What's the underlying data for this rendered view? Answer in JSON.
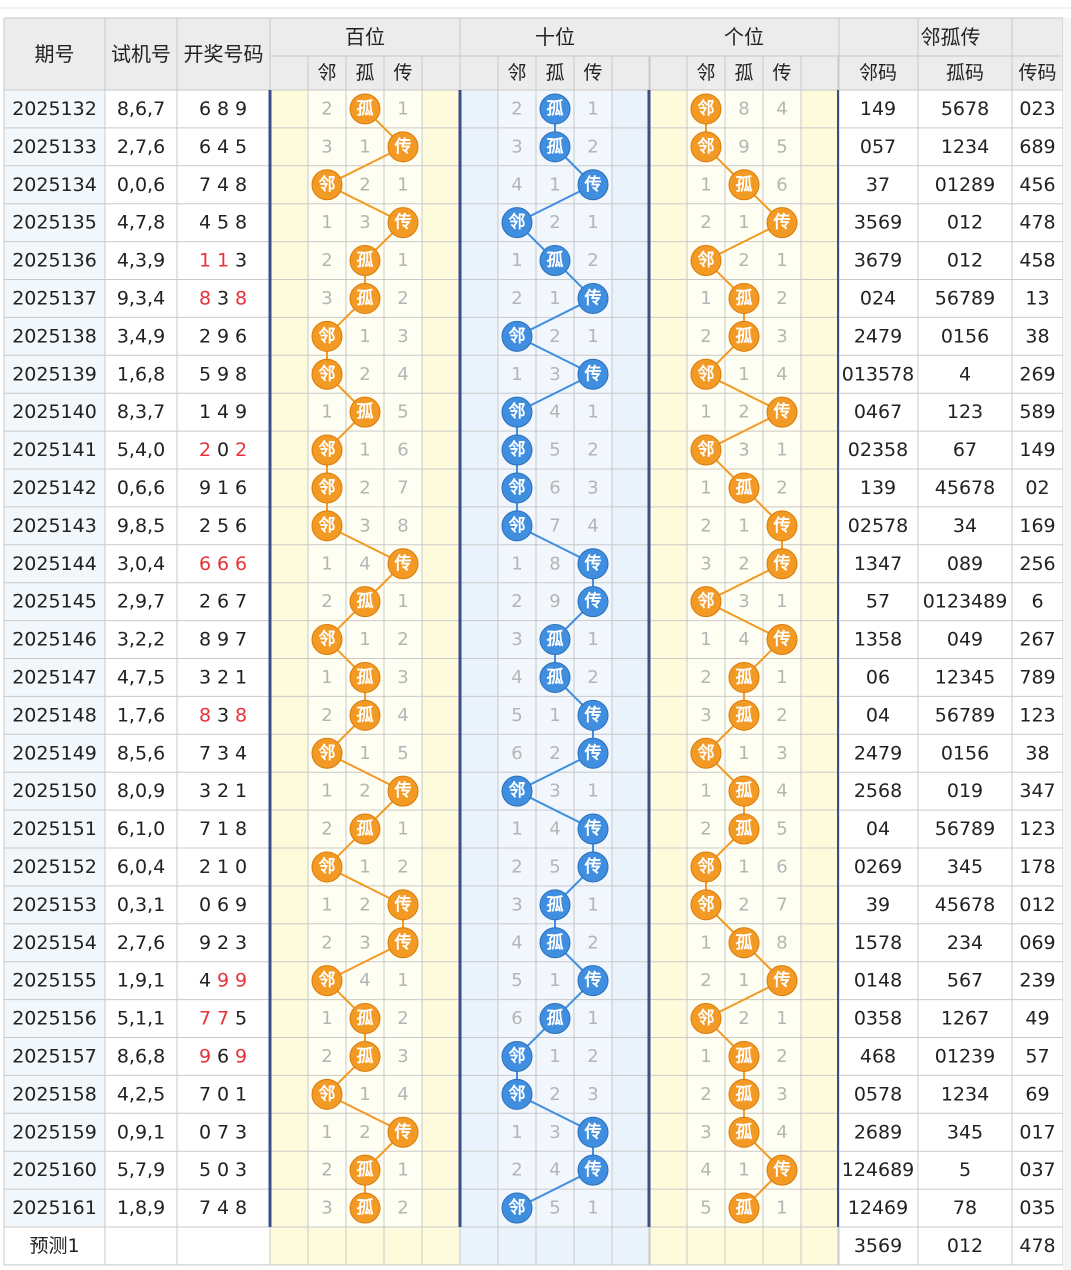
{
  "header": {
    "issue": "期号",
    "trial": "试机号",
    "draw": "开奖号码",
    "groups": [
      "百位",
      "十位",
      "个位",
      "邻孤传"
    ],
    "sub_labels": [
      "邻",
      "孤",
      "传"
    ],
    "tail_labels": [
      "邻码",
      "孤码",
      "传码"
    ]
  },
  "labels": {
    "lin": "邻",
    "gu": "孤",
    "chuan": "传"
  },
  "colors": {
    "orange_ball": "#f39a25",
    "blue_ball": "#3f8ee0",
    "repeat_digit": "#e8323a",
    "text": "#222222",
    "miss": "#b5b5b5",
    "yellow_cell": "#fdfbdc",
    "blue_cell": "#eaf3fb",
    "header_bg": "#ececec",
    "grid": "#c9c9c9"
  },
  "rows": [
    {
      "issue": "2025132",
      "trial": "8,6,7",
      "draw": [
        "6",
        "8",
        "9"
      ],
      "red": [],
      "b": "孤",
      "bm": [
        2,
        0,
        1
      ],
      "s": "孤",
      "sm": [
        2,
        0,
        1
      ],
      "g": "邻",
      "gm": [
        0,
        8,
        4
      ],
      "lin": "149",
      "gu": "5678",
      "chuan": "023"
    },
    {
      "issue": "2025133",
      "trial": "2,7,6",
      "draw": [
        "6",
        "4",
        "5"
      ],
      "red": [],
      "b": "传",
      "bm": [
        3,
        1,
        0
      ],
      "s": "孤",
      "sm": [
        3,
        0,
        2
      ],
      "g": "邻",
      "gm": [
        0,
        9,
        5
      ],
      "lin": "057",
      "gu": "1234",
      "chuan": "689"
    },
    {
      "issue": "2025134",
      "trial": "0,0,6",
      "draw": [
        "7",
        "4",
        "8"
      ],
      "red": [],
      "b": "邻",
      "bm": [
        0,
        2,
        1
      ],
      "s": "传",
      "sm": [
        4,
        1,
        0
      ],
      "g": "孤",
      "gm": [
        1,
        0,
        6
      ],
      "lin": "37",
      "gu": "01289",
      "chuan": "456"
    },
    {
      "issue": "2025135",
      "trial": "4,7,8",
      "draw": [
        "4",
        "5",
        "8"
      ],
      "red": [],
      "b": "传",
      "bm": [
        1,
        3,
        0
      ],
      "s": "邻",
      "sm": [
        0,
        2,
        1
      ],
      "g": "传",
      "gm": [
        2,
        1,
        0
      ],
      "lin": "3569",
      "gu": "012",
      "chuan": "478"
    },
    {
      "issue": "2025136",
      "trial": "4,3,9",
      "draw": [
        "1",
        "1",
        "3"
      ],
      "red": [
        0,
        1
      ],
      "b": "孤",
      "bm": [
        2,
        0,
        1
      ],
      "s": "孤",
      "sm": [
        1,
        0,
        2
      ],
      "g": "邻",
      "gm": [
        0,
        2,
        1
      ],
      "lin": "3679",
      "gu": "012",
      "chuan": "458"
    },
    {
      "issue": "2025137",
      "trial": "9,3,4",
      "draw": [
        "8",
        "3",
        "8"
      ],
      "red": [
        0,
        2
      ],
      "b": "孤",
      "bm": [
        3,
        0,
        2
      ],
      "s": "传",
      "sm": [
        2,
        1,
        0
      ],
      "g": "孤",
      "gm": [
        1,
        0,
        2
      ],
      "lin": "024",
      "gu": "56789",
      "chuan": "13"
    },
    {
      "issue": "2025138",
      "trial": "3,4,9",
      "draw": [
        "2",
        "9",
        "6"
      ],
      "red": [],
      "b": "邻",
      "bm": [
        0,
        1,
        3
      ],
      "s": "邻",
      "sm": [
        0,
        2,
        1
      ],
      "g": "孤",
      "gm": [
        2,
        0,
        3
      ],
      "lin": "2479",
      "gu": "0156",
      "chuan": "38"
    },
    {
      "issue": "2025139",
      "trial": "1,6,8",
      "draw": [
        "5",
        "9",
        "8"
      ],
      "red": [],
      "b": "邻",
      "bm": [
        0,
        2,
        4
      ],
      "s": "传",
      "sm": [
        1,
        3,
        0
      ],
      "g": "邻",
      "gm": [
        0,
        1,
        4
      ],
      "lin": "013578",
      "gu": "4",
      "chuan": "269"
    },
    {
      "issue": "2025140",
      "trial": "8,3,7",
      "draw": [
        "1",
        "4",
        "9"
      ],
      "red": [],
      "b": "孤",
      "bm": [
        1,
        0,
        5
      ],
      "s": "邻",
      "sm": [
        0,
        4,
        1
      ],
      "g": "传",
      "gm": [
        1,
        2,
        0
      ],
      "lin": "0467",
      "gu": "123",
      "chuan": "589"
    },
    {
      "issue": "2025141",
      "trial": "5,4,0",
      "draw": [
        "2",
        "0",
        "2"
      ],
      "red": [
        0,
        2
      ],
      "b": "邻",
      "bm": [
        0,
        1,
        6
      ],
      "s": "邻",
      "sm": [
        0,
        5,
        2
      ],
      "g": "邻",
      "gm": [
        0,
        3,
        1
      ],
      "lin": "02358",
      "gu": "67",
      "chuan": "149"
    },
    {
      "issue": "2025142",
      "trial": "0,6,6",
      "draw": [
        "9",
        "1",
        "6"
      ],
      "red": [],
      "b": "邻",
      "bm": [
        0,
        2,
        7
      ],
      "s": "邻",
      "sm": [
        0,
        6,
        3
      ],
      "g": "孤",
      "gm": [
        1,
        0,
        2
      ],
      "lin": "139",
      "gu": "45678",
      "chuan": "02"
    },
    {
      "issue": "2025143",
      "trial": "9,8,5",
      "draw": [
        "2",
        "5",
        "6"
      ],
      "red": [],
      "b": "邻",
      "bm": [
        0,
        3,
        8
      ],
      "s": "邻",
      "sm": [
        0,
        7,
        4
      ],
      "g": "传",
      "gm": [
        2,
        1,
        0
      ],
      "lin": "02578",
      "gu": "34",
      "chuan": "169"
    },
    {
      "issue": "2025144",
      "trial": "3,0,4",
      "draw": [
        "6",
        "6",
        "6"
      ],
      "red": [
        0,
        1,
        2
      ],
      "b": "传",
      "bm": [
        1,
        4,
        0
      ],
      "s": "传",
      "sm": [
        1,
        8,
        0
      ],
      "g": "传",
      "gm": [
        3,
        2,
        0
      ],
      "lin": "1347",
      "gu": "089",
      "chuan": "256"
    },
    {
      "issue": "2025145",
      "trial": "2,9,7",
      "draw": [
        "2",
        "6",
        "7"
      ],
      "red": [],
      "b": "孤",
      "bm": [
        2,
        0,
        1
      ],
      "s": "传",
      "sm": [
        2,
        9,
        0
      ],
      "g": "邻",
      "gm": [
        0,
        3,
        1
      ],
      "lin": "57",
      "gu": "0123489",
      "chuan": "6"
    },
    {
      "issue": "2025146",
      "trial": "3,2,2",
      "draw": [
        "8",
        "9",
        "7"
      ],
      "red": [],
      "b": "邻",
      "bm": [
        0,
        1,
        2
      ],
      "s": "孤",
      "sm": [
        3,
        0,
        1
      ],
      "g": "传",
      "gm": [
        1,
        4,
        0
      ],
      "lin": "1358",
      "gu": "049",
      "chuan": "267"
    },
    {
      "issue": "2025147",
      "trial": "4,7,5",
      "draw": [
        "3",
        "2",
        "1"
      ],
      "red": [],
      "b": "孤",
      "bm": [
        1,
        0,
        3
      ],
      "s": "孤",
      "sm": [
        4,
        0,
        2
      ],
      "g": "孤",
      "gm": [
        2,
        0,
        1
      ],
      "lin": "06",
      "gu": "12345",
      "chuan": "789"
    },
    {
      "issue": "2025148",
      "trial": "1,7,6",
      "draw": [
        "8",
        "3",
        "8"
      ],
      "red": [
        0,
        2
      ],
      "b": "孤",
      "bm": [
        2,
        0,
        4
      ],
      "s": "传",
      "sm": [
        5,
        1,
        0
      ],
      "g": "孤",
      "gm": [
        3,
        0,
        2
      ],
      "lin": "04",
      "gu": "56789",
      "chuan": "123"
    },
    {
      "issue": "2025149",
      "trial": "8,5,6",
      "draw": [
        "7",
        "3",
        "4"
      ],
      "red": [],
      "b": "邻",
      "bm": [
        0,
        1,
        5
      ],
      "s": "传",
      "sm": [
        6,
        2,
        0
      ],
      "g": "邻",
      "gm": [
        0,
        1,
        3
      ],
      "lin": "2479",
      "gu": "0156",
      "chuan": "38"
    },
    {
      "issue": "2025150",
      "trial": "8,0,9",
      "draw": [
        "3",
        "2",
        "1"
      ],
      "red": [],
      "b": "传",
      "bm": [
        1,
        2,
        0
      ],
      "s": "邻",
      "sm": [
        0,
        3,
        1
      ],
      "g": "孤",
      "gm": [
        1,
        0,
        4
      ],
      "lin": "2568",
      "gu": "019",
      "chuan": "347"
    },
    {
      "issue": "2025151",
      "trial": "6,1,0",
      "draw": [
        "7",
        "1",
        "8"
      ],
      "red": [],
      "b": "孤",
      "bm": [
        2,
        0,
        1
      ],
      "s": "传",
      "sm": [
        1,
        4,
        0
      ],
      "g": "孤",
      "gm": [
        2,
        0,
        5
      ],
      "lin": "04",
      "gu": "56789",
      "chuan": "123"
    },
    {
      "issue": "2025152",
      "trial": "6,0,4",
      "draw": [
        "2",
        "1",
        "0"
      ],
      "red": [],
      "b": "邻",
      "bm": [
        0,
        1,
        2
      ],
      "s": "传",
      "sm": [
        2,
        5,
        0
      ],
      "g": "邻",
      "gm": [
        0,
        1,
        6
      ],
      "lin": "0269",
      "gu": "345",
      "chuan": "178"
    },
    {
      "issue": "2025153",
      "trial": "0,3,1",
      "draw": [
        "0",
        "6",
        "9"
      ],
      "red": [],
      "b": "传",
      "bm": [
        1,
        2,
        0
      ],
      "s": "孤",
      "sm": [
        3,
        0,
        1
      ],
      "g": "邻",
      "gm": [
        0,
        2,
        7
      ],
      "lin": "39",
      "gu": "45678",
      "chuan": "012"
    },
    {
      "issue": "2025154",
      "trial": "2,7,6",
      "draw": [
        "9",
        "2",
        "3"
      ],
      "red": [],
      "b": "传",
      "bm": [
        2,
        3,
        0
      ],
      "s": "孤",
      "sm": [
        4,
        0,
        2
      ],
      "g": "孤",
      "gm": [
        1,
        0,
        8
      ],
      "lin": "1578",
      "gu": "234",
      "chuan": "069"
    },
    {
      "issue": "2025155",
      "trial": "1,9,1",
      "draw": [
        "4",
        "9",
        "9"
      ],
      "red": [
        1,
        2
      ],
      "b": "邻",
      "bm": [
        0,
        4,
        1
      ],
      "s": "传",
      "sm": [
        5,
        1,
        0
      ],
      "g": "传",
      "gm": [
        2,
        1,
        0
      ],
      "lin": "0148",
      "gu": "567",
      "chuan": "239"
    },
    {
      "issue": "2025156",
      "trial": "5,1,1",
      "draw": [
        "7",
        "7",
        "5"
      ],
      "red": [
        0,
        1
      ],
      "b": "孤",
      "bm": [
        1,
        0,
        2
      ],
      "s": "孤",
      "sm": [
        6,
        0,
        1
      ],
      "g": "邻",
      "gm": [
        0,
        2,
        1
      ],
      "lin": "0358",
      "gu": "1267",
      "chuan": "49"
    },
    {
      "issue": "2025157",
      "trial": "8,6,8",
      "draw": [
        "9",
        "6",
        "9"
      ],
      "red": [
        0,
        2
      ],
      "b": "孤",
      "bm": [
        2,
        0,
        3
      ],
      "s": "邻",
      "sm": [
        0,
        1,
        2
      ],
      "g": "孤",
      "gm": [
        1,
        0,
        2
      ],
      "lin": "468",
      "gu": "01239",
      "chuan": "57"
    },
    {
      "issue": "2025158",
      "trial": "4,2,5",
      "draw": [
        "7",
        "0",
        "1"
      ],
      "red": [],
      "b": "邻",
      "bm": [
        0,
        1,
        4
      ],
      "s": "邻",
      "sm": [
        0,
        2,
        3
      ],
      "g": "孤",
      "gm": [
        2,
        0,
        3
      ],
      "lin": "0578",
      "gu": "1234",
      "chuan": "69"
    },
    {
      "issue": "2025159",
      "trial": "0,9,1",
      "draw": [
        "0",
        "7",
        "3"
      ],
      "red": [],
      "b": "传",
      "bm": [
        1,
        2,
        0
      ],
      "s": "传",
      "sm": [
        1,
        3,
        0
      ],
      "g": "孤",
      "gm": [
        3,
        0,
        4
      ],
      "lin": "2689",
      "gu": "345",
      "chuan": "017"
    },
    {
      "issue": "2025160",
      "trial": "5,7,9",
      "draw": [
        "5",
        "0",
        "3"
      ],
      "red": [],
      "b": "孤",
      "bm": [
        2,
        0,
        1
      ],
      "s": "传",
      "sm": [
        2,
        4,
        0
      ],
      "g": "传",
      "gm": [
        4,
        1,
        0
      ],
      "lin": "124689",
      "gu": "5",
      "chuan": "037"
    },
    {
      "issue": "2025161",
      "trial": "1,8,9",
      "draw": [
        "7",
        "4",
        "8"
      ],
      "red": [],
      "b": "孤",
      "bm": [
        3,
        0,
        2
      ],
      "s": "邻",
      "sm": [
        0,
        5,
        1
      ],
      "g": "孤",
      "gm": [
        5,
        0,
        1
      ],
      "lin": "12469",
      "gu": "78",
      "chuan": "035"
    }
  ],
  "forecast": {
    "label": "预测1",
    "lin": "3569",
    "gu": "012",
    "chuan": "478"
  }
}
